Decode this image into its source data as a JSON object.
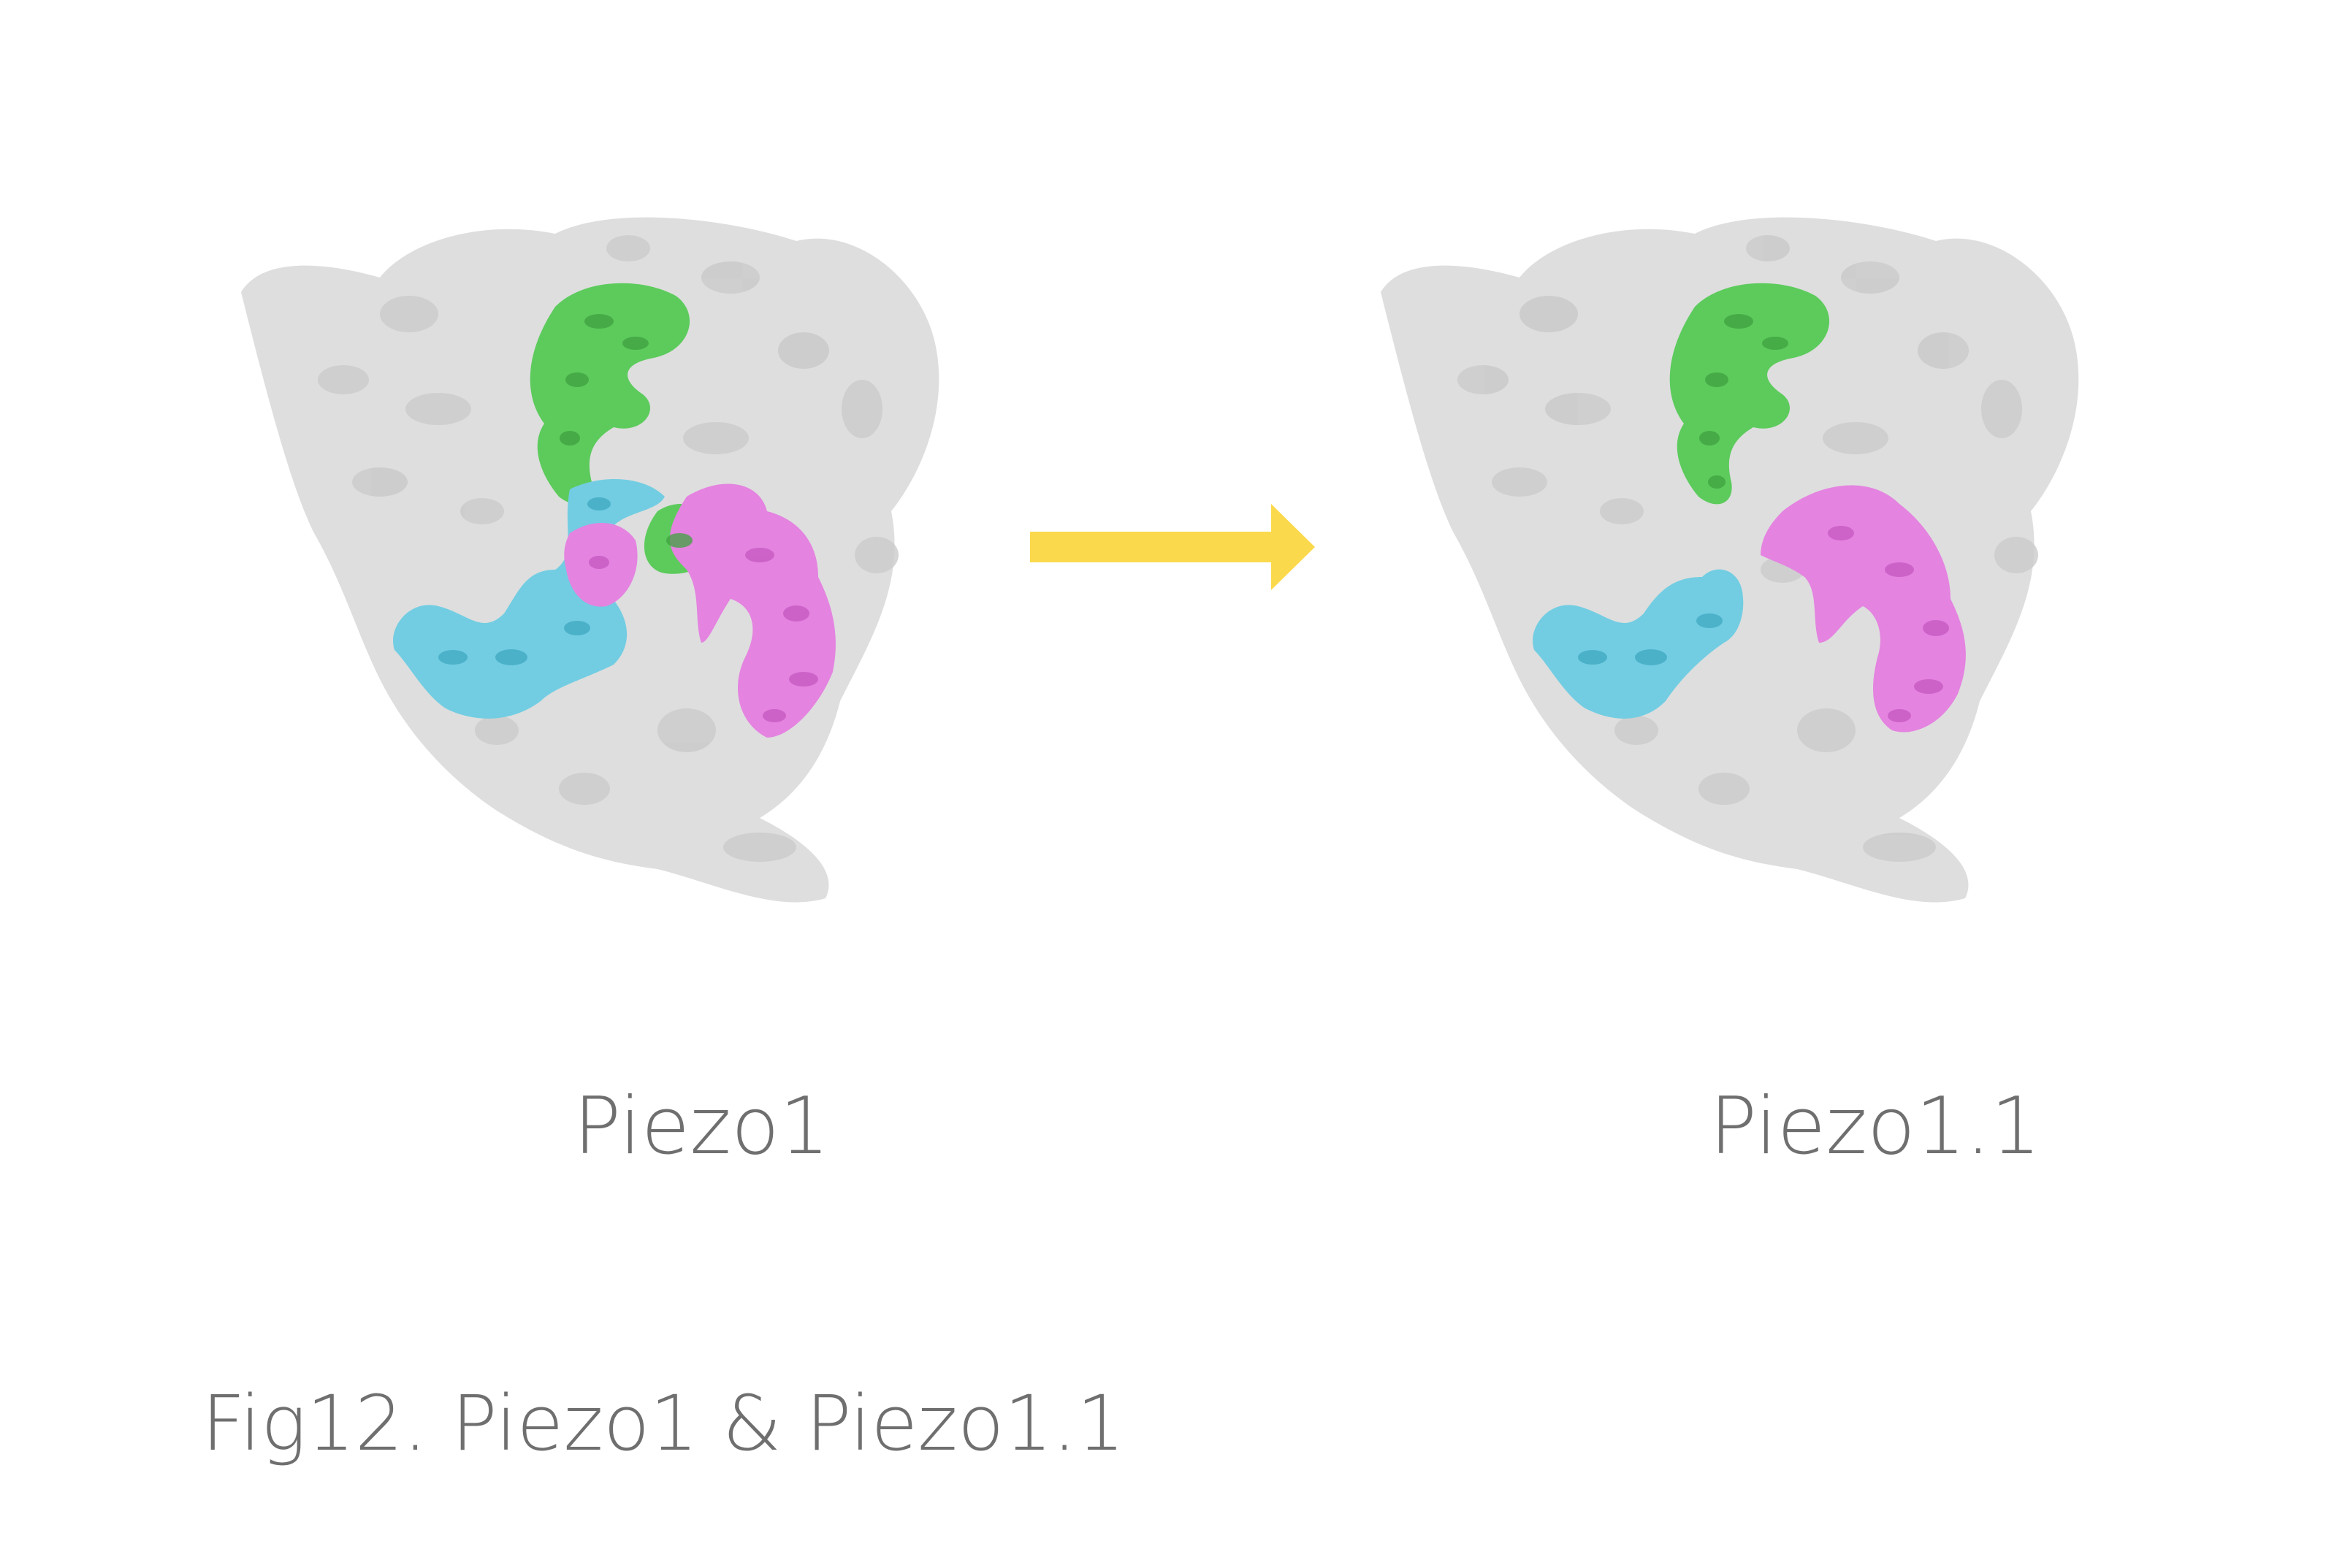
{
  "figure": {
    "left_label": "Piezo1",
    "right_label": "Piezo1.1",
    "caption": "Fig12. Piezo1 & Piezo1.1"
  },
  "colors": {
    "background": "#ffffff",
    "body": "#dedede",
    "body_shade": "#c9c9c9",
    "green": "#5ccb5c",
    "green_shade": "#3fa13f",
    "cyan": "#72cde2",
    "cyan_shade": "#3fa8c1",
    "magenta": "#e483e0",
    "magenta_shade": "#c557c0",
    "arrow": "#fbd94c",
    "text": "#6f6f6f"
  }
}
